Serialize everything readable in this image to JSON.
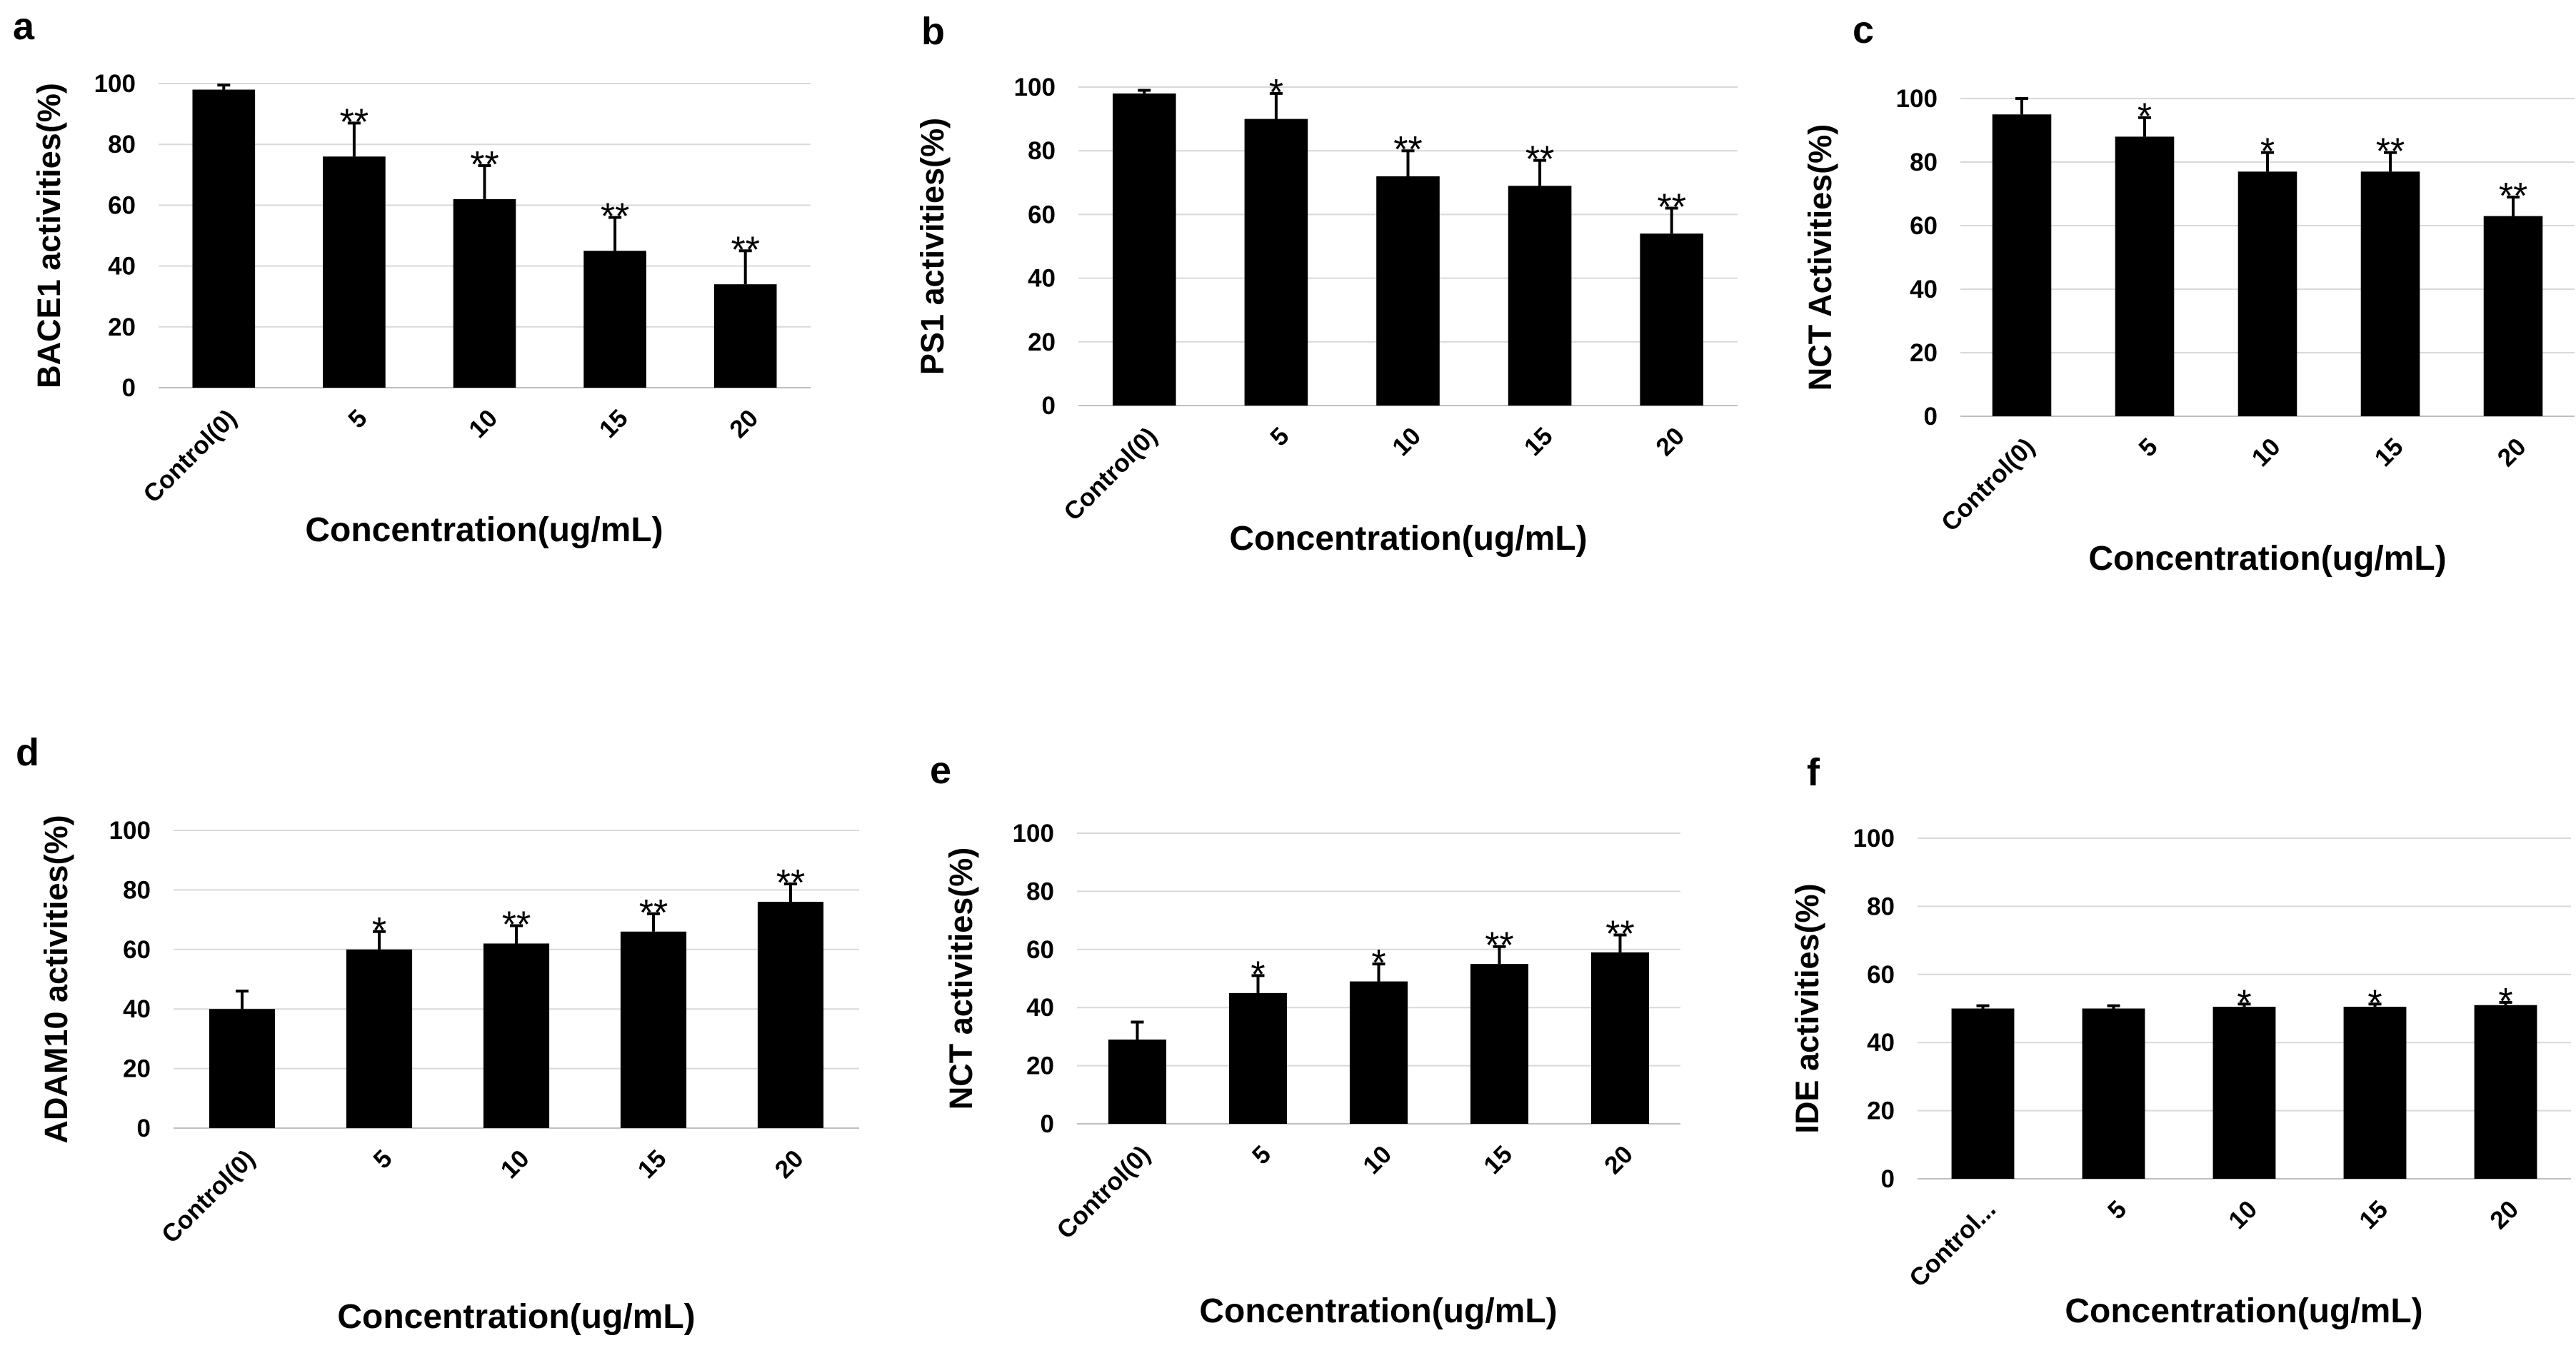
{
  "chart_data": [
    {
      "panel": "a",
      "type": "bar",
      "categories": [
        "Control(0)",
        "5",
        "10",
        "15",
        "20"
      ],
      "values": [
        98,
        76,
        62,
        45,
        34
      ],
      "errors": [
        1.5,
        11,
        11,
        11,
        11
      ],
      "annotations": [
        "",
        "**",
        "**",
        "**",
        "**"
      ],
      "xlabel": "Concentration(ug/mL)",
      "ylabel": "BACE1 activities(%)",
      "yticks": [
        0,
        20,
        40,
        60,
        80,
        100
      ],
      "ylim": [
        0,
        100
      ],
      "grid": true
    },
    {
      "panel": "b",
      "type": "bar",
      "categories": [
        "Control(0)",
        "5",
        "10",
        "15",
        "20"
      ],
      "values": [
        98,
        90,
        72,
        69,
        54
      ],
      "errors": [
        1,
        8,
        8,
        8,
        8
      ],
      "annotations": [
        "",
        "*",
        "**",
        "**",
        "**"
      ],
      "xlabel": "Concentration(ug/mL)",
      "ylabel": "PS1 activities(%)",
      "yticks": [
        0,
        20,
        40,
        60,
        80,
        100
      ],
      "ylim": [
        0,
        100
      ],
      "grid": true
    },
    {
      "panel": "c",
      "type": "bar",
      "categories": [
        "Control(0)",
        "5",
        "10",
        "15",
        "20"
      ],
      "values": [
        95,
        88,
        77,
        77,
        63
      ],
      "errors": [
        5,
        6,
        6,
        6,
        6
      ],
      "annotations": [
        "",
        "*",
        "*",
        "**",
        "**"
      ],
      "xlabel": "Concentration(ug/mL)",
      "ylabel": "NCT Activities(%)",
      "yticks": [
        0,
        20,
        40,
        60,
        80,
        100
      ],
      "ylim": [
        0,
        100
      ],
      "grid": true
    },
    {
      "panel": "d",
      "type": "bar",
      "categories": [
        "Control(0)",
        "5",
        "10",
        "15",
        "20"
      ],
      "values": [
        40,
        60,
        62,
        66,
        76
      ],
      "errors": [
        6,
        6,
        6,
        6,
        6
      ],
      "annotations": [
        "",
        "*",
        "**",
        "**",
        "**"
      ],
      "xlabel": "Concentration(ug/mL)",
      "ylabel": "ADAM10 activities(%)",
      "yticks": [
        0,
        20,
        40,
        60,
        80,
        100
      ],
      "ylim": [
        0,
        100
      ],
      "grid": true
    },
    {
      "panel": "e",
      "type": "bar",
      "categories": [
        "Control(0)",
        "5",
        "10",
        "15",
        "20"
      ],
      "values": [
        29,
        45,
        49,
        55,
        59
      ],
      "errors": [
        6,
        6,
        6,
        6,
        6
      ],
      "annotations": [
        "",
        "*",
        "*",
        "**",
        "**"
      ],
      "xlabel": "Concentration(ug/mL)",
      "ylabel": "NCT activities(%)",
      "yticks": [
        0,
        20,
        40,
        60,
        80,
        100
      ],
      "ylim": [
        0,
        100
      ],
      "grid": true
    },
    {
      "panel": "f",
      "type": "bar",
      "categories": [
        "Control...",
        "5",
        "10",
        "15",
        "20"
      ],
      "values": [
        50,
        50,
        50.5,
        50.5,
        51
      ],
      "errors": [
        0.8,
        0.8,
        0.8,
        0.8,
        0.8
      ],
      "annotations": [
        "",
        "",
        "*",
        "*",
        "*"
      ],
      "xlabel": "Concentration(ug/mL)",
      "ylabel": "IDE activities(%)",
      "yticks": [
        0,
        20,
        40,
        60,
        80,
        100
      ],
      "ylim": [
        0,
        100
      ],
      "grid": true
    }
  ]
}
